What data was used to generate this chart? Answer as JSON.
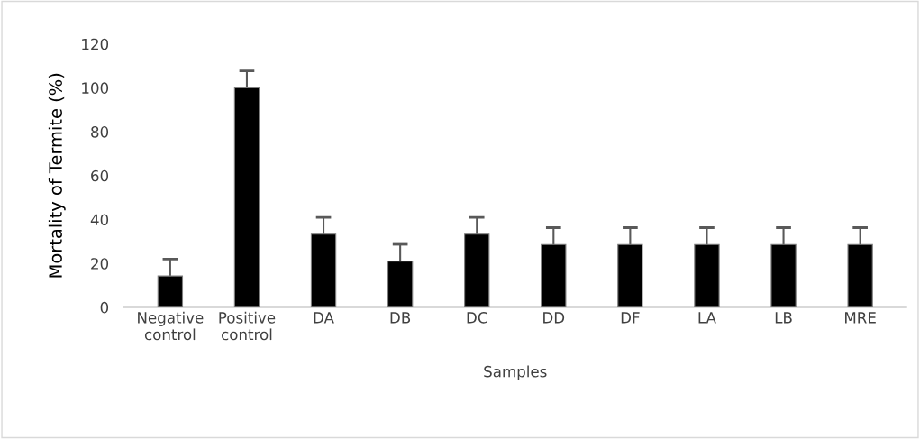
{
  "chart_data": {
    "type": "bar",
    "xlabel": "Samples",
    "ylabel": "Mortality of Termite (%)",
    "categories": [
      "Negative\ncontrol",
      "Positive\ncontrol",
      "DA",
      "DB",
      "DC",
      "DD",
      "DF",
      "LA",
      "LB",
      "MRE"
    ],
    "values": [
      14.3,
      100,
      33.3,
      21,
      33.3,
      28.6,
      28.6,
      28.6,
      28.6,
      28.6
    ],
    "errors": [
      7.7,
      7.7,
      7.7,
      7.7,
      7.7,
      7.7,
      7.7,
      7.7,
      7.7,
      7.7
    ],
    "color": "#000000",
    "ylim": [
      0,
      120
    ],
    "yticks": [
      0,
      20,
      40,
      60,
      80,
      100,
      120
    ],
    "grid": false
  }
}
